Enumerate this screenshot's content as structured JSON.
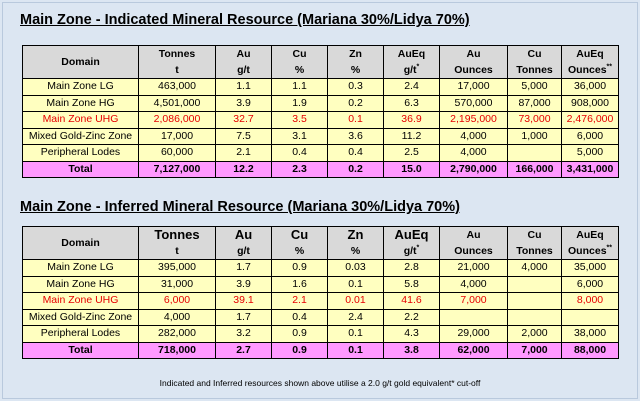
{
  "table1": {
    "title": "Main Zone - Indicated Mineral Resource (Mariana 30%/Lidya 70%)",
    "headers": [
      {
        "top": "Domain",
        "bottom": ""
      },
      {
        "top": "Tonnes",
        "bottom": "t"
      },
      {
        "top": "Au",
        "bottom": "g/t"
      },
      {
        "top": "Cu",
        "bottom": "%"
      },
      {
        "top": "Zn",
        "bottom": "%"
      },
      {
        "top": "AuEq",
        "bottom": "g/t*"
      },
      {
        "top": "Au",
        "bottom": "Ounces"
      },
      {
        "top": "Cu",
        "bottom": "Tonnes"
      },
      {
        "top": "AuEq",
        "bottom": "Ounces**"
      }
    ],
    "rows": [
      [
        "Main Zone LG",
        "463,000",
        "1.1",
        "1.1",
        "0.3",
        "2.4",
        "17,000",
        "5,000",
        "36,000"
      ],
      [
        "Main Zone HG",
        "4,501,000",
        "3.9",
        "1.9",
        "0.2",
        "6.3",
        "570,000",
        "87,000",
        "908,000"
      ],
      [
        "Main Zone UHG",
        "2,086,000",
        "32.7",
        "3.5",
        "0.1",
        "36.9",
        "2,195,000",
        "73,000",
        "2,476,000"
      ],
      [
        "Mixed Gold-Zinc Zone",
        "17,000",
        "7.5",
        "3.1",
        "3.6",
        "11.2",
        "4,000",
        "1,000",
        "6,000"
      ],
      [
        "Peripheral Lodes",
        "60,000",
        "2.1",
        "0.4",
        "0.4",
        "2.5",
        "4,000",
        "",
        "5,000"
      ],
      [
        "Total",
        "7,127,000",
        "12.2",
        "2.3",
        "0.2",
        "15.0",
        "2,790,000",
        "166,000",
        "3,431,000"
      ]
    ]
  },
  "table2": {
    "title": "Main Zone - Inferred Mineral Resource (Mariana 30%/Lidya 70%)",
    "headers": [
      {
        "top": "Domain",
        "bottom": ""
      },
      {
        "top": "Tonnes",
        "bottom": "t"
      },
      {
        "top": "Au",
        "bottom": "g/t"
      },
      {
        "top": "Cu",
        "bottom": "%"
      },
      {
        "top": "Zn",
        "bottom": "%"
      },
      {
        "top": "AuEq",
        "bottom": "g/t*"
      },
      {
        "top": "Au",
        "bottom": "Ounces"
      },
      {
        "top": "Cu",
        "bottom": "Tonnes"
      },
      {
        "top": "AuEq",
        "bottom": "Ounces**"
      }
    ],
    "rows": [
      [
        "Main Zone LG",
        "395,000",
        "1.7",
        "0.9",
        "0.03",
        "2.8",
        "21,000",
        "4,000",
        "35,000"
      ],
      [
        "Main Zone HG",
        "31,000",
        "3.9",
        "1.6",
        "0.1",
        "5.8",
        "4,000",
        "",
        "6,000"
      ],
      [
        "Main Zone UHG",
        "6,000",
        "39.1",
        "2.1",
        "0.01",
        "41.6",
        "7,000",
        "",
        "8,000"
      ],
      [
        "Mixed Gold-Zinc Zone",
        "4,000",
        "1.7",
        "0.4",
        "2.4",
        "2.2",
        "",
        "",
        ""
      ],
      [
        "Peripheral Lodes",
        "282,000",
        "3.2",
        "0.9",
        "0.1",
        "4.3",
        "29,000",
        "2,000",
        "38,000"
      ],
      [
        "Total",
        "718,000",
        "2.7",
        "0.9",
        "0.1",
        "3.8",
        "62,000",
        "7,000",
        "88,000"
      ]
    ]
  },
  "footnote": "Indicated and Inferred resources shown above utilise a 2.0 g/t gold equivalent* cut-off",
  "colors": {
    "background": "#dce6f2",
    "header_fill": "#d9d9d9",
    "row_fill": "#ffffc0",
    "total_fill": "#ff99ff",
    "uhg_text": "#e60000"
  }
}
